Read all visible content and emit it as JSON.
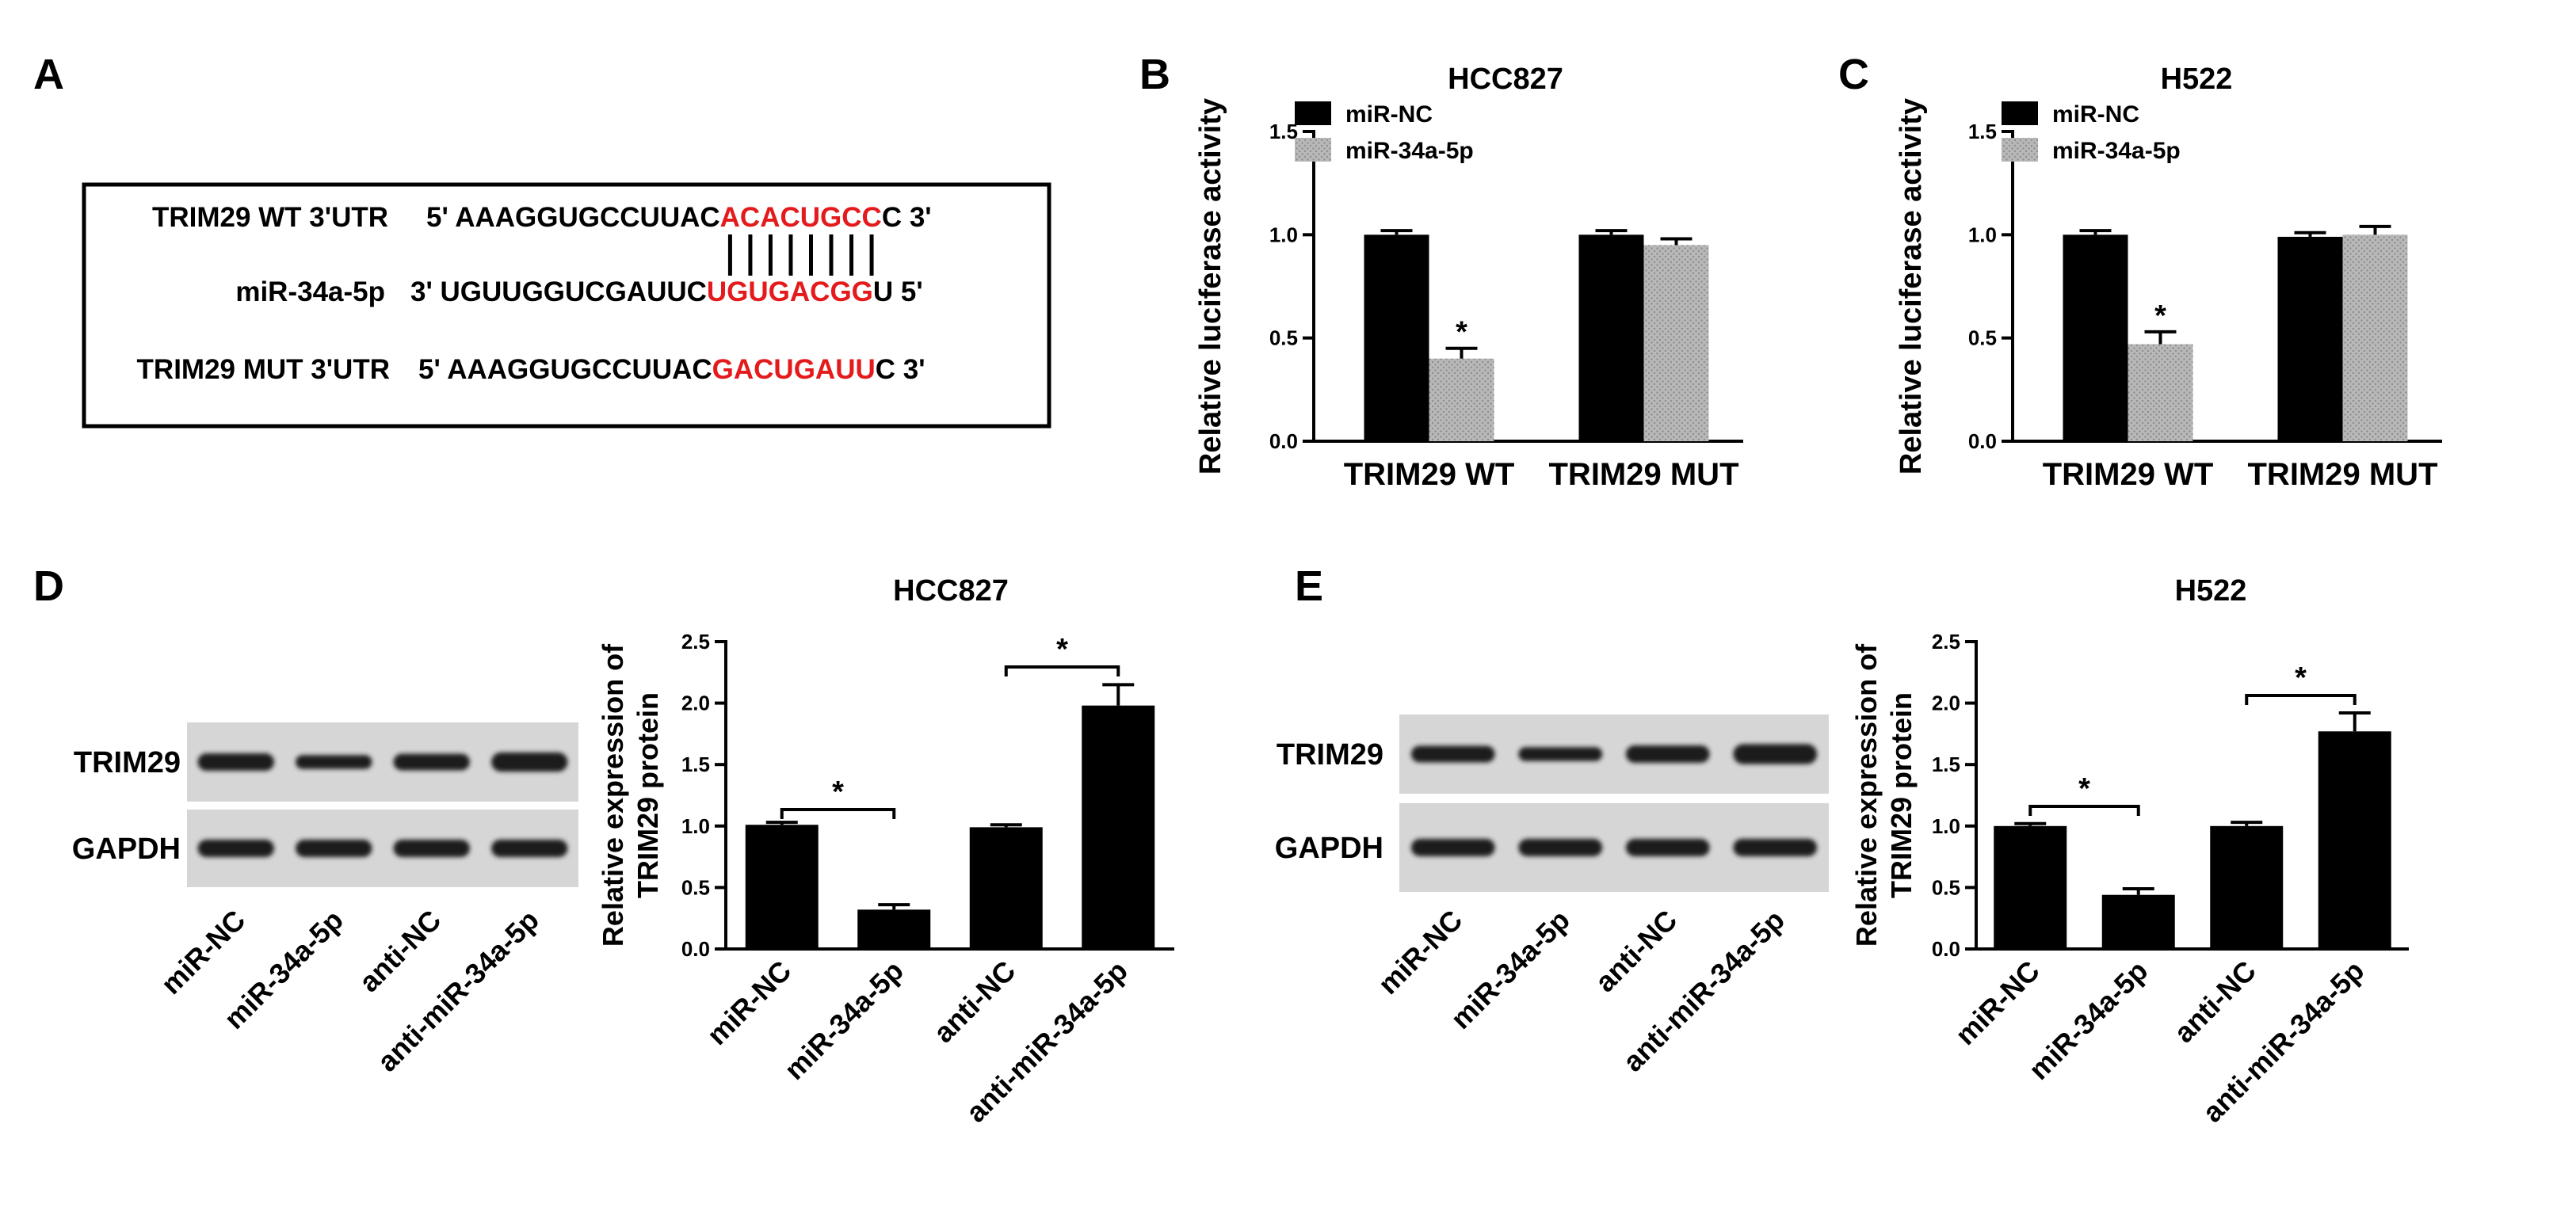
{
  "panel_letters": [
    "A",
    "B",
    "C",
    "D",
    "E"
  ],
  "colors": {
    "black": "#000000",
    "red": "#e41a1c",
    "mirna_fill": "#b4b4b4",
    "blot_bg": "#d8d8d8",
    "band": "#1c1c1c"
  },
  "sequence_panel": {
    "rows": [
      {
        "label": "TRIM29 WT 3'UTR",
        "prefix": "5' AAAGGUGCCUUAC",
        "highlight": "ACACUGCC",
        "suffix": "C 3'"
      },
      {
        "label": "miR-34a-5p",
        "prefix": "3' UGUUGGUCGAUUC",
        "highlight": "UGUGACGG",
        "suffix": "U  5'"
      },
      {
        "label": "TRIM29 MUT 3'UTR",
        "prefix": "5' AAAGGUGCCUUAC",
        "highlight": "GACUGAUU",
        "suffix": "C 3'"
      }
    ]
  },
  "blots": [
    {
      "bands": [
        "TRIM29",
        "GAPDH"
      ],
      "lanes": [
        "miR-NC",
        "miR-34a-5p",
        "anti-NC",
        "anti-miR-34a-5p"
      ]
    },
    {
      "bands": [
        "TRIM29",
        "GAPDH"
      ],
      "lanes": [
        "miR-NC",
        "miR-34a-5p",
        "anti-NC",
        "anti-miR-34a-5p"
      ]
    }
  ],
  "chart_data": [
    {
      "panel": "B",
      "type": "bar",
      "title": "HCC827",
      "ylabel": "Relative luciferase activity",
      "xlabel": "",
      "ylim": [
        0,
        1.5
      ],
      "yticks": [
        "0.0",
        "0.5",
        "1.0",
        "1.5"
      ],
      "categories": [
        "TRIM29 WT",
        "TRIM29 MUT"
      ],
      "series": [
        {
          "name": "miR-NC",
          "values": [
            1.0,
            1.0
          ],
          "errors": [
            0.02,
            0.02
          ]
        },
        {
          "name": "miR-34a-5p",
          "values": [
            0.4,
            0.95
          ],
          "errors": [
            0.05,
            0.03
          ]
        }
      ],
      "annotations": [
        "*"
      ],
      "legend": "top-left"
    },
    {
      "panel": "C",
      "type": "bar",
      "title": "H522",
      "ylabel": "Relative luciferase activity",
      "xlabel": "",
      "ylim": [
        0,
        1.5
      ],
      "yticks": [
        "0.0",
        "0.5",
        "1.0",
        "1.5"
      ],
      "categories": [
        "TRIM29 WT",
        "TRIM29 MUT"
      ],
      "series": [
        {
          "name": "miR-NC",
          "values": [
            1.0,
            0.99
          ],
          "errors": [
            0.02,
            0.02
          ]
        },
        {
          "name": "miR-34a-5p",
          "values": [
            0.47,
            1.0
          ],
          "errors": [
            0.06,
            0.04
          ]
        }
      ],
      "annotations": [
        "*"
      ],
      "legend": "top-left"
    },
    {
      "panel": "D",
      "type": "bar",
      "title": "HCC827",
      "ylabel": "Relative expression of TRIM29 protein",
      "xlabel": "",
      "ylim": [
        0,
        2.5
      ],
      "yticks": [
        "0.0",
        "0.5",
        "1.0",
        "1.5",
        "2.0",
        "2.5"
      ],
      "categories": [
        "miR-NC",
        "miR-34a-5p",
        "anti-NC",
        "anti-miR-34a-5p"
      ],
      "values": [
        1.01,
        0.32,
        0.99,
        1.98
      ],
      "errors": [
        0.02,
        0.04,
        0.02,
        0.17
      ],
      "annotations": [
        "*",
        "*"
      ]
    },
    {
      "panel": "E",
      "type": "bar",
      "title": "H522",
      "ylabel": "Relative expression of TRIM29 protein",
      "xlabel": "",
      "ylim": [
        0,
        2.5
      ],
      "yticks": [
        "0.0",
        "0.5",
        "1.0",
        "1.5",
        "2.0",
        "2.5"
      ],
      "categories": [
        "miR-NC",
        "miR-34a-5p",
        "anti-NC",
        "anti-miR-34a-5p"
      ],
      "values": [
        1.0,
        0.44,
        1.0,
        1.77
      ],
      "errors": [
        0.02,
        0.05,
        0.03,
        0.15
      ],
      "annotations": [
        "*",
        "*"
      ]
    }
  ]
}
